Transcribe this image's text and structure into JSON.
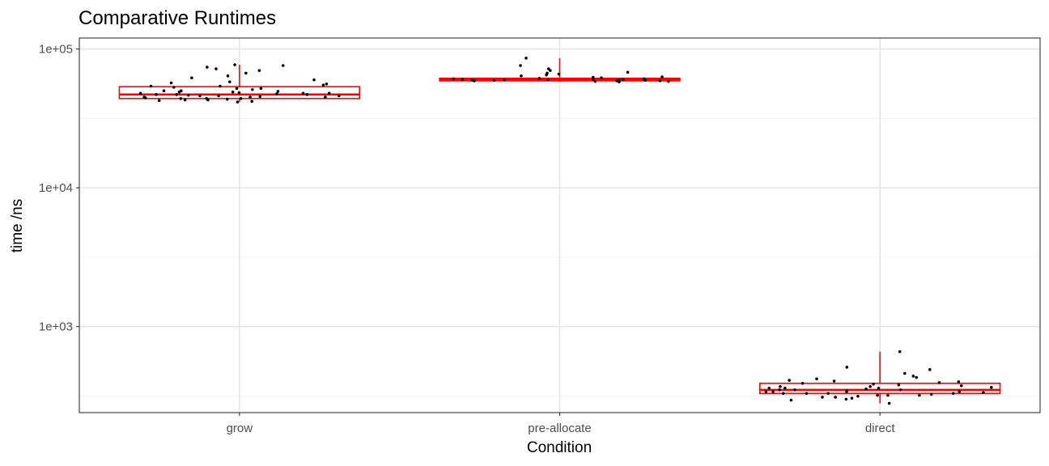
{
  "chart_data": {
    "type": "box",
    "title": "Comparative Runtimes",
    "xlabel": "Condition",
    "ylabel": "time /ns",
    "y_scale": "log10",
    "ylim": [
      240,
      120000
    ],
    "yticks": [
      {
        "value": 1000,
        "label": "1e+03"
      },
      {
        "value": 10000,
        "label": "1e+04"
      },
      {
        "value": 100000,
        "label": "1e+05"
      }
    ],
    "y_minor_grid": [
      316.2,
      3162,
      31620
    ],
    "categories": [
      "grow",
      "pre-allocate",
      "direct"
    ],
    "boxes": [
      {
        "category": "grow",
        "min": 41500,
        "q1": 44000,
        "median": 47000,
        "q3": 53500,
        "max": 77000
      },
      {
        "category": "pre-allocate",
        "min": 58000,
        "q1": 59000,
        "median": 60000,
        "q3": 61500,
        "max": 86000
      },
      {
        "category": "direct",
        "min": 280,
        "q1": 330,
        "median": 350,
        "q3": 390,
        "max": 660
      }
    ],
    "points": {
      "grow": [
        41500,
        42000,
        42500,
        43000,
        43500,
        44000,
        44500,
        45000,
        45500,
        46000,
        46500,
        47000,
        47500,
        48000,
        48500,
        49000,
        49500,
        50000,
        51000,
        52000,
        53000,
        54000,
        55000,
        56000,
        57000,
        58000,
        60000,
        62000,
        64000,
        67000,
        70000,
        72000,
        74000,
        76000,
        77000,
        44000,
        45000,
        46000,
        47000,
        48000,
        43000,
        44000,
        45000,
        46000,
        47000,
        48000,
        49000,
        50000,
        52000,
        54000
      ],
      "pre-allocate": [
        58000,
        58500,
        59000,
        59500,
        60000,
        60500,
        61000,
        61500,
        62000,
        62500,
        63000,
        64000,
        65000,
        66000,
        67000,
        68000,
        70000,
        72000,
        76000,
        86000,
        59000,
        59500,
        60000,
        60500,
        61000,
        58500,
        59000,
        59500,
        60000,
        60500
      ],
      "direct": [
        280,
        295,
        300,
        305,
        310,
        315,
        320,
        325,
        330,
        335,
        340,
        345,
        350,
        355,
        360,
        365,
        370,
        375,
        380,
        385,
        390,
        395,
        400,
        405,
        410,
        420,
        430,
        440,
        460,
        490,
        510,
        660,
        330,
        340,
        350,
        360,
        320,
        330,
        340,
        350,
        360,
        370,
        310,
        320,
        330,
        340
      ]
    },
    "box_color": "#ff0000",
    "point_color": "#000000",
    "grid": true,
    "legend": "none"
  }
}
